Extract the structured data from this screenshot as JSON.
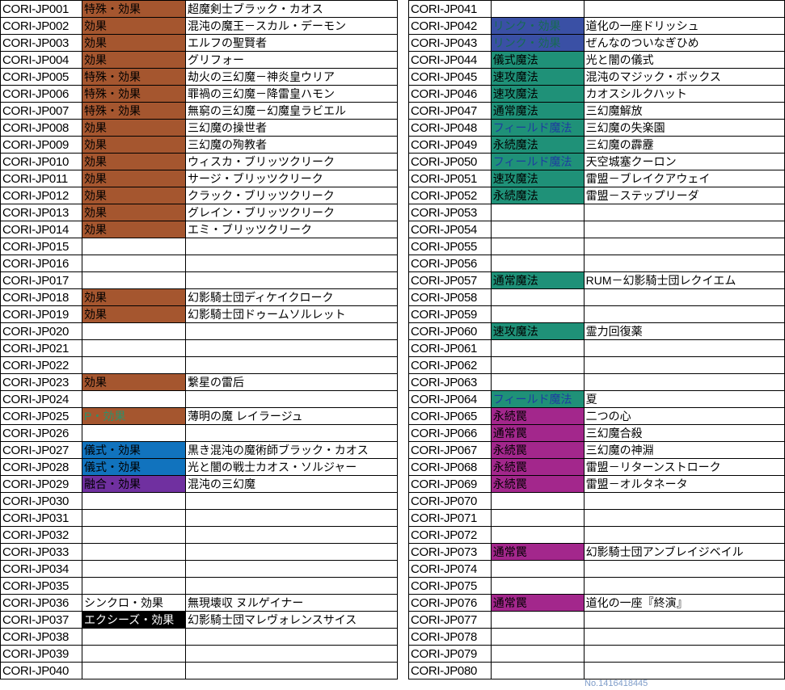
{
  "footer": {
    "note": "No.1416418445"
  },
  "type_styles": {
    "effect": {
      "bg": "#A5562F",
      "fg": "#000000"
    },
    "pendulum": {
      "bg": "#A5562F",
      "fg": "#2E9169"
    },
    "ritual": {
      "bg": "#1173BE",
      "fg": "#000000"
    },
    "fusion": {
      "bg": "#7030A0",
      "fg": "#000000"
    },
    "synchro": {
      "bg": "",
      "fg": "#000000"
    },
    "xyz": {
      "bg": "#000000",
      "fg": "#FFFFFF"
    },
    "link": {
      "bg": "#3A50A5",
      "fg": "#176B52"
    },
    "spell": {
      "bg": "#1F9178",
      "fg": "#000000"
    },
    "spell_field": {
      "bg": "#1F9178",
      "fg": "#1F3DA0"
    },
    "trap": {
      "bg": "#A3278C",
      "fg": "#000000"
    }
  },
  "left_table": {
    "rows": [
      {
        "number": "CORI-JP001",
        "type": "特殊・効果",
        "type_style": "effect",
        "name": "超魔剣士ブラック・カオス"
      },
      {
        "number": "CORI-JP002",
        "type": "効果",
        "type_style": "effect",
        "name": "混沌の魔王－スカル・デーモン"
      },
      {
        "number": "CORI-JP003",
        "type": "効果",
        "type_style": "effect",
        "name": "エルフの聖賢者"
      },
      {
        "number": "CORI-JP004",
        "type": "効果",
        "type_style": "effect",
        "name": "グリフォー"
      },
      {
        "number": "CORI-JP005",
        "type": "特殊・効果",
        "type_style": "effect",
        "name": "劫火の三幻魔－神炎皇ウリア"
      },
      {
        "number": "CORI-JP006",
        "type": "特殊・効果",
        "type_style": "effect",
        "name": "罪禍の三幻魔－降雷皇ハモン"
      },
      {
        "number": "CORI-JP007",
        "type": "特殊・効果",
        "type_style": "effect",
        "name": "無窮の三幻魔－幻魔皇ラビエル"
      },
      {
        "number": "CORI-JP008",
        "type": "効果",
        "type_style": "effect",
        "name": "三幻魔の操世者"
      },
      {
        "number": "CORI-JP009",
        "type": "効果",
        "type_style": "effect",
        "name": "三幻魔の殉教者"
      },
      {
        "number": "CORI-JP010",
        "type": "効果",
        "type_style": "effect",
        "name": "ウィスカ・ブリッツクリーク"
      },
      {
        "number": "CORI-JP011",
        "type": "効果",
        "type_style": "effect",
        "name": "サージ・ブリッツクリーク"
      },
      {
        "number": "CORI-JP012",
        "type": "効果",
        "type_style": "effect",
        "name": "クラック・ブリッツクリーク"
      },
      {
        "number": "CORI-JP013",
        "type": "効果",
        "type_style": "effect",
        "name": "グレイン・ブリッツクリーク"
      },
      {
        "number": "CORI-JP014",
        "type": "効果",
        "type_style": "effect",
        "name": "エミ・ブリッツクリーク"
      },
      {
        "number": "CORI-JP015",
        "type": "",
        "type_style": "",
        "name": ""
      },
      {
        "number": "CORI-JP016",
        "type": "",
        "type_style": "",
        "name": ""
      },
      {
        "number": "CORI-JP017",
        "type": "",
        "type_style": "",
        "name": ""
      },
      {
        "number": "CORI-JP018",
        "type": "効果",
        "type_style": "effect",
        "name": "幻影騎士団ディケイクローク"
      },
      {
        "number": "CORI-JP019",
        "type": "効果",
        "type_style": "effect",
        "name": "幻影騎士団ドゥームソルレット"
      },
      {
        "number": "CORI-JP020",
        "type": "",
        "type_style": "",
        "name": ""
      },
      {
        "number": "CORI-JP021",
        "type": "",
        "type_style": "",
        "name": ""
      },
      {
        "number": "CORI-JP022",
        "type": "",
        "type_style": "",
        "name": ""
      },
      {
        "number": "CORI-JP023",
        "type": "効果",
        "type_style": "effect",
        "name": "繋星の雷后"
      },
      {
        "number": "CORI-JP024",
        "type": "",
        "type_style": "",
        "name": ""
      },
      {
        "number": "CORI-JP025",
        "type": "P・効果",
        "type_style": "pendulum",
        "name": "薄明の魔 レイラージュ"
      },
      {
        "number": "CORI-JP026",
        "type": "",
        "type_style": "",
        "name": ""
      },
      {
        "number": "CORI-JP027",
        "type": "儀式・効果",
        "type_style": "ritual",
        "name": "黒き混沌の魔術師ブラック・カオス"
      },
      {
        "number": "CORI-JP028",
        "type": "儀式・効果",
        "type_style": "ritual",
        "name": "光と闇の戦士カオス・ソルジャー"
      },
      {
        "number": "CORI-JP029",
        "type": "融合・効果",
        "type_style": "fusion",
        "name": "混沌の三幻魔"
      },
      {
        "number": "CORI-JP030",
        "type": "",
        "type_style": "",
        "name": ""
      },
      {
        "number": "CORI-JP031",
        "type": "",
        "type_style": "",
        "name": ""
      },
      {
        "number": "CORI-JP032",
        "type": "",
        "type_style": "",
        "name": ""
      },
      {
        "number": "CORI-JP033",
        "type": "",
        "type_style": "",
        "name": ""
      },
      {
        "number": "CORI-JP034",
        "type": "",
        "type_style": "",
        "name": ""
      },
      {
        "number": "CORI-JP035",
        "type": "",
        "type_style": "",
        "name": ""
      },
      {
        "number": "CORI-JP036",
        "type": "シンクロ・効果",
        "type_style": "synchro",
        "name": "無現壊収 ヌルゲイナー"
      },
      {
        "number": "CORI-JP037",
        "type": "エクシーズ・効果",
        "type_style": "xyz",
        "name": "幻影騎士団マレヴォレンスサイス"
      },
      {
        "number": "CORI-JP038",
        "type": "",
        "type_style": "",
        "name": ""
      },
      {
        "number": "CORI-JP039",
        "type": "",
        "type_style": "",
        "name": ""
      },
      {
        "number": "CORI-JP040",
        "type": "",
        "type_style": "",
        "name": ""
      }
    ]
  },
  "right_table": {
    "rows": [
      {
        "number": "CORI-JP041",
        "type": "",
        "type_style": "",
        "name": ""
      },
      {
        "number": "CORI-JP042",
        "type": "リンク・効果",
        "type_style": "link",
        "name": "道化の一座ドリッシュ"
      },
      {
        "number": "CORI-JP043",
        "type": "リンク・効果",
        "type_style": "link",
        "name": "ぜんなのついなぎひめ"
      },
      {
        "number": "CORI-JP044",
        "type": "儀式魔法",
        "type_style": "spell",
        "name": "光と闇の儀式"
      },
      {
        "number": "CORI-JP045",
        "type": "速攻魔法",
        "type_style": "spell",
        "name": "混沌のマジック・ボックス"
      },
      {
        "number": "CORI-JP046",
        "type": "速攻魔法",
        "type_style": "spell",
        "name": "カオスシルクハット"
      },
      {
        "number": "CORI-JP047",
        "type": "通常魔法",
        "type_style": "spell",
        "name": "三幻魔解放"
      },
      {
        "number": "CORI-JP048",
        "type": "フィールド魔法",
        "type_style": "spell_field",
        "name": "三幻魔の失楽園"
      },
      {
        "number": "CORI-JP049",
        "type": "永続魔法",
        "type_style": "spell",
        "name": "三幻魔の霹靂"
      },
      {
        "number": "CORI-JP050",
        "type": "フィールド魔法",
        "type_style": "spell_field",
        "name": "天空城塞クーロン"
      },
      {
        "number": "CORI-JP051",
        "type": "速攻魔法",
        "type_style": "spell",
        "name": "雷盟－ブレイクアウェイ"
      },
      {
        "number": "CORI-JP052",
        "type": "永続魔法",
        "type_style": "spell",
        "name": "雷盟－ステップリーダ"
      },
      {
        "number": "CORI-JP053",
        "type": "",
        "type_style": "",
        "name": ""
      },
      {
        "number": "CORI-JP054",
        "type": "",
        "type_style": "",
        "name": ""
      },
      {
        "number": "CORI-JP055",
        "type": "",
        "type_style": "",
        "name": ""
      },
      {
        "number": "CORI-JP056",
        "type": "",
        "type_style": "",
        "name": ""
      },
      {
        "number": "CORI-JP057",
        "type": "通常魔法",
        "type_style": "spell",
        "name": "RUM－幻影騎士団レクイエム"
      },
      {
        "number": "CORI-JP058",
        "type": "",
        "type_style": "",
        "name": ""
      },
      {
        "number": "CORI-JP059",
        "type": "",
        "type_style": "",
        "name": ""
      },
      {
        "number": "CORI-JP060",
        "type": "速攻魔法",
        "type_style": "spell",
        "name": "霊力回復薬"
      },
      {
        "number": "CORI-JP061",
        "type": "",
        "type_style": "",
        "name": ""
      },
      {
        "number": "CORI-JP062",
        "type": "",
        "type_style": "",
        "name": ""
      },
      {
        "number": "CORI-JP063",
        "type": "",
        "type_style": "",
        "name": ""
      },
      {
        "number": "CORI-JP064",
        "type": "フィールド魔法",
        "type_style": "spell_field",
        "name": "夏"
      },
      {
        "number": "CORI-JP065",
        "type": "永続罠",
        "type_style": "trap",
        "name": "二つの心"
      },
      {
        "number": "CORI-JP066",
        "type": "通常罠",
        "type_style": "trap",
        "name": "三幻魔合殺"
      },
      {
        "number": "CORI-JP067",
        "type": "永続罠",
        "type_style": "trap",
        "name": "三幻魔の神淵"
      },
      {
        "number": "CORI-JP068",
        "type": "永続罠",
        "type_style": "trap",
        "name": "雷盟－リターンストローク"
      },
      {
        "number": "CORI-JP069",
        "type": "永続罠",
        "type_style": "trap",
        "name": "雷盟－オルタネータ"
      },
      {
        "number": "CORI-JP070",
        "type": "",
        "type_style": "",
        "name": ""
      },
      {
        "number": "CORI-JP071",
        "type": "",
        "type_style": "",
        "name": ""
      },
      {
        "number": "CORI-JP072",
        "type": "",
        "type_style": "",
        "name": ""
      },
      {
        "number": "CORI-JP073",
        "type": "通常罠",
        "type_style": "trap",
        "name": "幻影騎士団アンブレイジベイル"
      },
      {
        "number": "CORI-JP074",
        "type": "",
        "type_style": "",
        "name": ""
      },
      {
        "number": "CORI-JP075",
        "type": "",
        "type_style": "",
        "name": ""
      },
      {
        "number": "CORI-JP076",
        "type": "通常罠",
        "type_style": "trap",
        "name": "道化の一座『終演』"
      },
      {
        "number": "CORI-JP077",
        "type": "",
        "type_style": "",
        "name": ""
      },
      {
        "number": "CORI-JP078",
        "type": "",
        "type_style": "",
        "name": ""
      },
      {
        "number": "CORI-JP079",
        "type": "",
        "type_style": "",
        "name": ""
      },
      {
        "number": "CORI-JP080",
        "type": "",
        "type_style": "",
        "name": ""
      }
    ]
  }
}
